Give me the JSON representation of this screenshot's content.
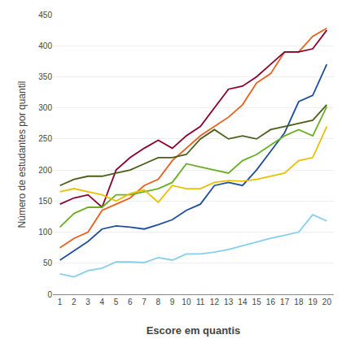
{
  "chart_data": {
    "type": "line",
    "xlabel": "Escore em quantis",
    "ylabel": "Número de estudantes por quantil",
    "x": [
      1,
      2,
      3,
      4,
      5,
      6,
      7,
      8,
      9,
      10,
      11,
      12,
      13,
      14,
      15,
      16,
      17,
      18,
      19,
      20
    ],
    "series": [
      {
        "color": "#87CEEB",
        "values": [
          33,
          28,
          38,
          42,
          52,
          52,
          51,
          59,
          55,
          65,
          65,
          68,
          72,
          78,
          85,
          90,
          95,
          100,
          128,
          118
        ]
      },
      {
        "color": "#1F4E9C",
        "values": [
          55,
          70,
          85,
          105,
          110,
          108,
          105,
          112,
          120,
          135,
          145,
          175,
          180,
          175,
          200,
          230,
          260,
          310,
          320,
          370
        ]
      },
      {
        "color": "#E8601C",
        "values": [
          75,
          90,
          100,
          135,
          145,
          155,
          175,
          185,
          215,
          235,
          255,
          270,
          285,
          305,
          340,
          355,
          390,
          390,
          415,
          428
        ]
      },
      {
        "color": "#8B0030",
        "values": [
          145,
          155,
          160,
          140,
          200,
          220,
          235,
          248,
          235,
          255,
          270,
          300,
          330,
          335,
          350,
          370,
          390,
          390,
          395,
          425
        ]
      },
      {
        "color": "#4A5E1A",
        "values": [
          175,
          185,
          190,
          190,
          195,
          200,
          210,
          220,
          220,
          225,
          250,
          265,
          250,
          255,
          250,
          265,
          270,
          275,
          280,
          305
        ]
      },
      {
        "color": "#6AAF23",
        "values": [
          108,
          130,
          140,
          140,
          160,
          160,
          165,
          170,
          180,
          210,
          205,
          200,
          195,
          215,
          225,
          240,
          255,
          265,
          255,
          302
        ]
      },
      {
        "color": "#E8C000",
        "values": [
          165,
          170,
          165,
          160,
          150,
          162,
          168,
          148,
          175,
          170,
          170,
          180,
          183,
          182,
          185,
          190,
          195,
          215,
          220,
          270
        ]
      }
    ],
    "xlim": [
      0.5,
      20.5
    ],
    "xticks": [
      1,
      2,
      3,
      4,
      5,
      6,
      7,
      8,
      9,
      10,
      11,
      12,
      13,
      14,
      15,
      16,
      17,
      18,
      19,
      20
    ],
    "ylim": [
      0,
      450
    ],
    "yticks": [
      0,
      50,
      100,
      150,
      200,
      250,
      300,
      350,
      400,
      450
    ],
    "grid": "y"
  }
}
